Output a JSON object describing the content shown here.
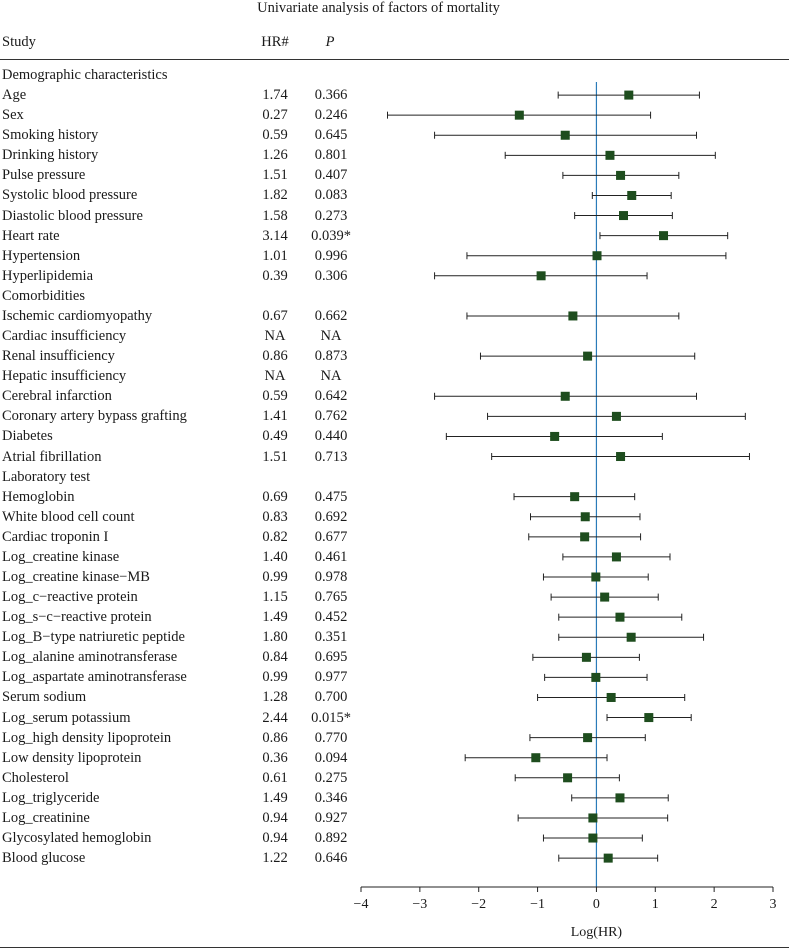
{
  "chart_data": {
    "type": "forest",
    "title": "Univariate analysis of factors of mortality",
    "columns": {
      "study": "Study",
      "hr": "HR#",
      "p": "P"
    },
    "xlabel": "Log(HR)",
    "xlim": [
      -4,
      3
    ],
    "xticks": [
      "−4",
      "−3",
      "−2",
      "−1",
      "0",
      "1",
      "2",
      "3"
    ],
    "xtick_values": [
      -4,
      -3,
      -2,
      -1,
      0,
      1,
      2,
      3
    ],
    "reference_line": 0,
    "reference_color": "#2b7bb9",
    "marker_color": "#1e4d1e",
    "rows": [
      {
        "label": "Demographic characteristics",
        "header": true
      },
      {
        "label": "Age",
        "hr": "1.74",
        "p": "0.366",
        "est": 0.55,
        "lo": -0.65,
        "hi": 1.75
      },
      {
        "label": "Sex",
        "hr": "0.27",
        "p": "0.246",
        "est": -1.31,
        "lo": -3.55,
        "hi": 0.92
      },
      {
        "label": "Smoking history",
        "hr": "0.59",
        "p": "0.645",
        "est": -0.53,
        "lo": -2.75,
        "hi": 1.7
      },
      {
        "label": "Drinking history",
        "hr": "1.26",
        "p": "0.801",
        "est": 0.23,
        "lo": -1.55,
        "hi": 2.02
      },
      {
        "label": "Pulse pressure",
        "hr": "1.51",
        "p": "0.407",
        "est": 0.41,
        "lo": -0.57,
        "hi": 1.4
      },
      {
        "label": "Systolic blood pressure",
        "hr": "1.82",
        "p": "0.083",
        "est": 0.6,
        "lo": -0.07,
        "hi": 1.27
      },
      {
        "label": "Diastolic blood pressure",
        "hr": "1.58",
        "p": "0.273",
        "est": 0.46,
        "lo": -0.37,
        "hi": 1.29
      },
      {
        "label": "Heart rate",
        "hr": "3.14",
        "p": "0.039*",
        "est": 1.14,
        "lo": 0.06,
        "hi": 2.23
      },
      {
        "label": "Hypertension",
        "hr": "1.01",
        "p": "0.996",
        "est": 0.01,
        "lo": -2.2,
        "hi": 2.2
      },
      {
        "label": "Hyperlipidemia",
        "hr": "0.39",
        "p": "0.306",
        "est": -0.94,
        "lo": -2.75,
        "hi": 0.86
      },
      {
        "label": "Comorbidities",
        "header": true
      },
      {
        "label": "Ischemic cardiomyopathy",
        "hr": "0.67",
        "p": "0.662",
        "est": -0.4,
        "lo": -2.2,
        "hi": 1.4
      },
      {
        "label": "Cardiac insufficiency",
        "hr": "NA",
        "p": "NA"
      },
      {
        "label": "Renal insufficiency",
        "hr": "0.86",
        "p": "0.873",
        "est": -0.15,
        "lo": -1.97,
        "hi": 1.67
      },
      {
        "label": "Hepatic insufficiency",
        "hr": "NA",
        "p": "NA"
      },
      {
        "label": "Cerebral infarction",
        "hr": "0.59",
        "p": "0.642",
        "est": -0.53,
        "lo": -2.75,
        "hi": 1.7
      },
      {
        "label": "Coronary artery bypass grafting",
        "hr": "1.41",
        "p": "0.762",
        "est": 0.34,
        "lo": -1.85,
        "hi": 2.53
      },
      {
        "label": "Diabetes",
        "hr": "0.49",
        "p": "0.440",
        "est": -0.71,
        "lo": -2.55,
        "hi": 1.12
      },
      {
        "label": "Atrial fibrillation",
        "hr": "1.51",
        "p": "0.713",
        "est": 0.41,
        "lo": -1.78,
        "hi": 2.6
      },
      {
        "label": "Laboratory test",
        "header": true
      },
      {
        "label": "Hemoglobin",
        "hr": "0.69",
        "p": "0.475",
        "est": -0.37,
        "lo": -1.4,
        "hi": 0.65
      },
      {
        "label": "White blood cell count",
        "hr": "0.83",
        "p": "0.692",
        "est": -0.19,
        "lo": -1.12,
        "hi": 0.74
      },
      {
        "label": "Cardiac troponin I",
        "hr": "0.82",
        "p": "0.677",
        "est": -0.2,
        "lo": -1.15,
        "hi": 0.75
      },
      {
        "label": "Log_creatine kinase",
        "hr": "1.40",
        "p": "0.461",
        "est": 0.34,
        "lo": -0.57,
        "hi": 1.25
      },
      {
        "label": "Log_creatine kinase−MB",
        "hr": "0.99",
        "p": "0.978",
        "est": -0.01,
        "lo": -0.9,
        "hi": 0.88
      },
      {
        "label": "Log_c−reactive protein",
        "hr": "1.15",
        "p": "0.765",
        "est": 0.14,
        "lo": -0.77,
        "hi": 1.05
      },
      {
        "label": "Log_s−c−reactive protein",
        "hr": "1.49",
        "p": "0.452",
        "est": 0.4,
        "lo": -0.64,
        "hi": 1.45
      },
      {
        "label": "Log_B−type natriuretic peptide",
        "hr": "1.80",
        "p": "0.351",
        "est": 0.59,
        "lo": -0.64,
        "hi": 1.82
      },
      {
        "label": "Log_alanine aminotransferase",
        "hr": "0.84",
        "p": "0.695",
        "est": -0.17,
        "lo": -1.08,
        "hi": 0.73
      },
      {
        "label": "Log_aspartate aminotransferase",
        "hr": "0.99",
        "p": "0.977",
        "est": -0.01,
        "lo": -0.88,
        "hi": 0.86
      },
      {
        "label": "Serum sodium",
        "hr": "1.28",
        "p": "0.700",
        "est": 0.25,
        "lo": -1.0,
        "hi": 1.5
      },
      {
        "label": "Log_serum potassium",
        "hr": "2.44",
        "p": "0.015*",
        "est": 0.89,
        "lo": 0.18,
        "hi": 1.61
      },
      {
        "label": "Log_high density lipoprotein",
        "hr": "0.86",
        "p": "0.770",
        "est": -0.15,
        "lo": -1.13,
        "hi": 0.83
      },
      {
        "label": "Low density lipoprotein",
        "hr": "0.36",
        "p": "0.094",
        "est": -1.03,
        "lo": -2.23,
        "hi": 0.18
      },
      {
        "label": "Cholesterol",
        "hr": "0.61",
        "p": "0.275",
        "est": -0.49,
        "lo": -1.38,
        "hi": 0.39
      },
      {
        "label": "Log_triglyceride",
        "hr": "1.49",
        "p": "0.346",
        "est": 0.4,
        "lo": -0.42,
        "hi": 1.22
      },
      {
        "label": "Log_creatinine",
        "hr": "0.94",
        "p": "0.927",
        "est": -0.06,
        "lo": -1.33,
        "hi": 1.21
      },
      {
        "label": "Glycosylated hemoglobin",
        "hr": "0.94",
        "p": "0.892",
        "est": -0.06,
        "lo": -0.9,
        "hi": 0.78
      },
      {
        "label": "Blood glucose",
        "hr": "1.22",
        "p": "0.646",
        "est": 0.2,
        "lo": -0.64,
        "hi": 1.04
      }
    ]
  }
}
